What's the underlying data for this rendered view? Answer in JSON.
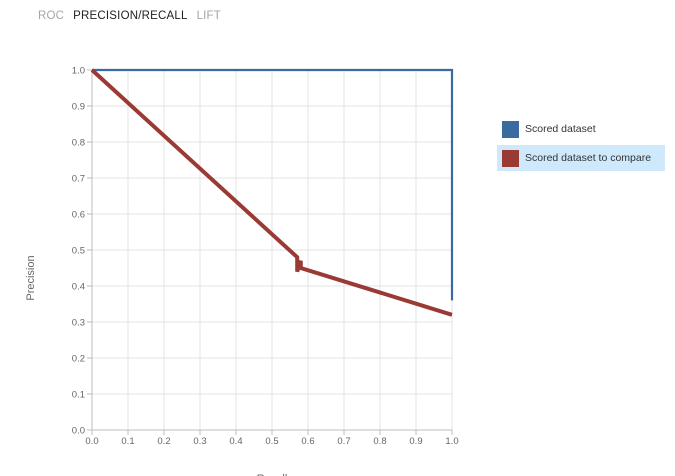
{
  "tabs": [
    {
      "label": "ROC",
      "active": false
    },
    {
      "label": "PRECISION/RECALL",
      "active": true
    },
    {
      "label": "LIFT",
      "active": false
    }
  ],
  "legend": {
    "items": [
      {
        "label": "Scored dataset",
        "color": "#3a6aa0",
        "highlighted": false
      },
      {
        "label": "Scored dataset to compare",
        "color": "#993a35",
        "highlighted": true
      }
    ]
  },
  "chart_data": {
    "type": "line",
    "xlabel": "Recall",
    "ylabel": "Precision",
    "xlim": [
      0,
      1
    ],
    "ylim": [
      0,
      1
    ],
    "grid": true,
    "legend_position": "right",
    "x_ticks": [
      "0.0",
      "0.1",
      "0.2",
      "0.3",
      "0.4",
      "0.5",
      "0.6",
      "0.7",
      "0.8",
      "0.9",
      "1.0"
    ],
    "y_ticks": [
      "0.0",
      "0.1",
      "0.2",
      "0.3",
      "0.4",
      "0.5",
      "0.6",
      "0.7",
      "0.8",
      "0.9",
      "1.0"
    ],
    "series": [
      {
        "name": "Scored dataset",
        "color": "#3a6aa0",
        "points": [
          [
            0,
            1.0
          ],
          [
            1.0,
            1.0
          ],
          [
            1.0,
            0.36
          ]
        ]
      },
      {
        "name": "Scored dataset to compare",
        "color": "#993a35",
        "points": [
          [
            0,
            1.0
          ],
          [
            0.57,
            0.48
          ],
          [
            0.57,
            0.44
          ],
          [
            0.58,
            0.47
          ],
          [
            0.58,
            0.45
          ],
          [
            1.0,
            0.32
          ]
        ]
      }
    ]
  }
}
